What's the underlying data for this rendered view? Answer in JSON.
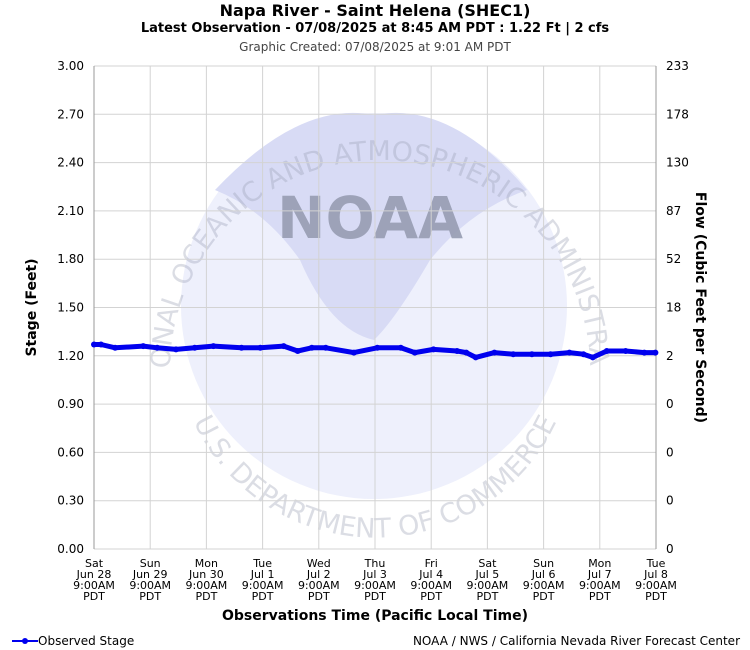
{
  "header": {
    "title": "Napa River - Saint Helena (SHEC1)",
    "latest": "Latest Observation - 07/08/2025 at 8:45 AM PDT : 1.22 Ft | 2 cfs",
    "created": "Graphic Created: 07/08/2025 at 9:01 AM PDT"
  },
  "footer": {
    "legend_label": "Observed Stage",
    "credit": "NOAA / NWS / California Nevada River Forecast Center"
  },
  "watermark": {
    "logo_text": "NOAA",
    "top_arc": "NATIONAL OCEANIC AND ATMOSPHERIC ADMINISTRATION",
    "bottom_arc": "U.S. DEPARTMENT OF COMMERCE"
  },
  "colors": {
    "series": "#0000ee",
    "grid": "#d3d3d3",
    "watermark": "#c8ccf0"
  },
  "chart_data": {
    "type": "line",
    "xlabel": "Observations Time (Pacific Local Time)",
    "ylabel": "Stage (Feet)",
    "y2label": "Flow (Cubic Feet per Second)",
    "ylim": [
      0,
      3
    ],
    "yticks": [
      "0.00",
      "0.30",
      "0.60",
      "0.90",
      "1.20",
      "1.50",
      "1.80",
      "2.10",
      "2.40",
      "2.70",
      "3.00"
    ],
    "y2ticks": [
      "0",
      "0",
      "0",
      "0",
      "2",
      "18",
      "52",
      "87",
      "130",
      "178",
      "233"
    ],
    "xticks": [
      [
        "Sat",
        "Jun 28",
        "9:00AM",
        "PDT"
      ],
      [
        "Sun",
        "Jun 29",
        "9:00AM",
        "PDT"
      ],
      [
        "Mon",
        "Jun 30",
        "9:00AM",
        "PDT"
      ],
      [
        "Tue",
        "Jul 1",
        "9:00AM",
        "PDT"
      ],
      [
        "Wed",
        "Jul 2",
        "9:00AM",
        "PDT"
      ],
      [
        "Thu",
        "Jul 3",
        "9:00AM",
        "PDT"
      ],
      [
        "Fri",
        "Jul 4",
        "9:00AM",
        "PDT"
      ],
      [
        "Sat",
        "Jul 5",
        "9:00AM",
        "PDT"
      ],
      [
        "Sun",
        "Jul 6",
        "9:00AM",
        "PDT"
      ],
      [
        "Mon",
        "Jul 7",
        "9:00AM",
        "PDT"
      ],
      [
        "Tue",
        "Jul 8",
        "9:00AM",
        "PDT"
      ]
    ],
    "grid": true,
    "legend_position": "bottom-left",
    "series": [
      {
        "name": "Observed Stage",
        "x": [
          "2025-06-28",
          "2025-06-28 12:00",
          "2025-06-28 18:00",
          "2025-06-29 06:00",
          "2025-06-29 12:00",
          "2025-06-29 20:00",
          "2025-06-30 04:00",
          "2025-06-30 12:00",
          "2025-07-01 00:00",
          "2025-07-01 08:00",
          "2025-07-01 18:00",
          "2025-07-02 00:00",
          "2025-07-02 06:00",
          "2025-07-02 12:00",
          "2025-07-03 00:00",
          "2025-07-03 10:00",
          "2025-07-03 20:00",
          "2025-07-04 02:00",
          "2025-07-04 10:00",
          "2025-07-04 20:00",
          "2025-07-05 00:00",
          "2025-07-05 04:00",
          "2025-07-05 12:00",
          "2025-07-05 20:00",
          "2025-07-06 04:00",
          "2025-07-06 12:00",
          "2025-07-06 20:00",
          "2025-07-07 02:00",
          "2025-07-07 06:00",
          "2025-07-07 12:00",
          "2025-07-07 20:00",
          "2025-07-08 04:00",
          "2025-07-08 08:45"
        ],
        "y": [
          1.27,
          1.27,
          1.25,
          1.26,
          1.25,
          1.24,
          1.25,
          1.26,
          1.25,
          1.25,
          1.26,
          1.23,
          1.25,
          1.25,
          1.22,
          1.25,
          1.25,
          1.22,
          1.24,
          1.23,
          1.22,
          1.19,
          1.22,
          1.21,
          1.21,
          1.21,
          1.22,
          1.21,
          1.19,
          1.23,
          1.23,
          1.22,
          1.22
        ]
      }
    ]
  }
}
